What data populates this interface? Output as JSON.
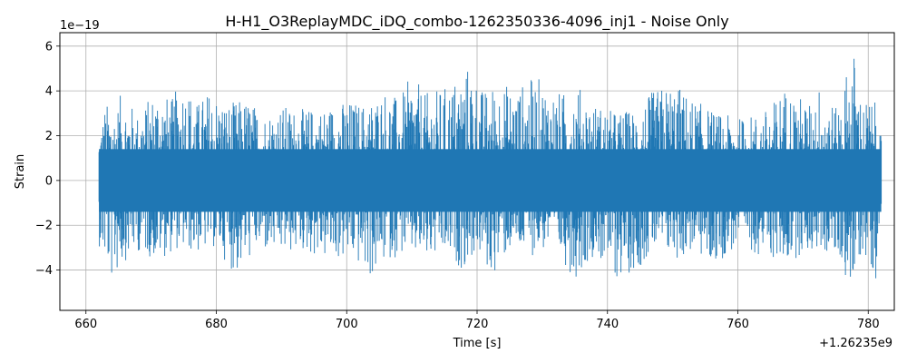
{
  "chart_data": {
    "type": "line",
    "title": "H-H1_O3ReplayMDC_iDQ_combo-1262350336-4096_inj1 - Noise Only",
    "xlabel": "Time [s]",
    "ylabel": "Strain",
    "x_offset_label": "+1.26235e9",
    "y_scale_label": "1e−19",
    "xlim": [
      656,
      784
    ],
    "ylim": [
      -5.8,
      6.6
    ],
    "x_ticks": [
      660,
      680,
      700,
      720,
      740,
      760,
      780
    ],
    "x_tick_labels": [
      "660",
      "680",
      "700",
      "720",
      "740",
      "760",
      "780"
    ],
    "y_ticks": [
      -4,
      -2,
      0,
      2,
      4,
      6
    ],
    "y_tick_labels": [
      "−4",
      "−2",
      "0",
      "2",
      "4",
      "6"
    ],
    "grid": true,
    "line_color": "#1f77b4",
    "series": [
      {
        "x_range": [
          662,
          782
        ],
        "envelope_max": [
          {
            "x": 662.0,
            "y": 2.0
          },
          {
            "x": 663.0,
            "y": 3.5
          },
          {
            "x": 664.5,
            "y": 3.2
          },
          {
            "x": 665.5,
            "y": 4.0
          },
          {
            "x": 668.0,
            "y": 3.0
          },
          {
            "x": 671.0,
            "y": 4.3
          },
          {
            "x": 673.0,
            "y": 3.6
          },
          {
            "x": 675.0,
            "y": 4.7
          },
          {
            "x": 677.0,
            "y": 3.5
          },
          {
            "x": 679.0,
            "y": 4.1
          },
          {
            "x": 682.0,
            "y": 3.5
          },
          {
            "x": 685.0,
            "y": 3.7
          },
          {
            "x": 687.0,
            "y": 3.0
          },
          {
            "x": 690.0,
            "y": 3.4
          },
          {
            "x": 693.0,
            "y": 3.2
          },
          {
            "x": 696.0,
            "y": 3.3
          },
          {
            "x": 700.0,
            "y": 3.6
          },
          {
            "x": 703.0,
            "y": 3.5
          },
          {
            "x": 706.0,
            "y": 4.2
          },
          {
            "x": 708.0,
            "y": 3.6
          },
          {
            "x": 710.0,
            "y": 4.8
          },
          {
            "x": 712.0,
            "y": 3.9
          },
          {
            "x": 715.0,
            "y": 4.2
          },
          {
            "x": 719.0,
            "y": 5.3
          },
          {
            "x": 721.0,
            "y": 4.0
          },
          {
            "x": 723.0,
            "y": 4.5
          },
          {
            "x": 726.0,
            "y": 4.2
          },
          {
            "x": 729.0,
            "y": 4.7
          },
          {
            "x": 731.0,
            "y": 4.3
          },
          {
            "x": 733.0,
            "y": 3.9
          },
          {
            "x": 735.0,
            "y": 4.4
          },
          {
            "x": 738.0,
            "y": 3.5
          },
          {
            "x": 741.0,
            "y": 3.1
          },
          {
            "x": 744.0,
            "y": 3.2
          },
          {
            "x": 747.0,
            "y": 4.0
          },
          {
            "x": 750.0,
            "y": 4.5
          },
          {
            "x": 753.0,
            "y": 3.7
          },
          {
            "x": 757.0,
            "y": 3.0
          },
          {
            "x": 760.0,
            "y": 2.8
          },
          {
            "x": 763.0,
            "y": 3.0
          },
          {
            "x": 765.0,
            "y": 3.3
          },
          {
            "x": 767.0,
            "y": 4.3
          },
          {
            "x": 771.0,
            "y": 3.5
          },
          {
            "x": 773.0,
            "y": 4.6
          },
          {
            "x": 775.0,
            "y": 3.2
          },
          {
            "x": 777.7,
            "y": 6.1
          },
          {
            "x": 779.0,
            "y": 3.6
          },
          {
            "x": 780.5,
            "y": 3.7
          },
          {
            "x": 781.5,
            "y": 3.3
          },
          {
            "x": 782.0,
            "y": 1.8
          }
        ],
        "envelope_min": [
          {
            "x": 662.0,
            "y": -2.9
          },
          {
            "x": 663.0,
            "y": -3.8
          },
          {
            "x": 664.0,
            "y": -4.6
          },
          {
            "x": 666.0,
            "y": -3.6
          },
          {
            "x": 668.0,
            "y": -3.2
          },
          {
            "x": 671.0,
            "y": -3.6
          },
          {
            "x": 674.0,
            "y": -3.1
          },
          {
            "x": 677.0,
            "y": -3.3
          },
          {
            "x": 680.0,
            "y": -3.0
          },
          {
            "x": 683.0,
            "y": -4.3
          },
          {
            "x": 686.0,
            "y": -3.2
          },
          {
            "x": 690.0,
            "y": -3.4
          },
          {
            "x": 693.0,
            "y": -3.2
          },
          {
            "x": 697.0,
            "y": -3.6
          },
          {
            "x": 701.0,
            "y": -3.6
          },
          {
            "x": 704.0,
            "y": -4.5
          },
          {
            "x": 706.0,
            "y": -3.6
          },
          {
            "x": 709.0,
            "y": -3.3
          },
          {
            "x": 712.0,
            "y": -3.7
          },
          {
            "x": 715.0,
            "y": -3.5
          },
          {
            "x": 718.0,
            "y": -4.0
          },
          {
            "x": 720.0,
            "y": -3.2
          },
          {
            "x": 722.0,
            "y": -4.4
          },
          {
            "x": 725.0,
            "y": -3.2
          },
          {
            "x": 728.0,
            "y": -3.4
          },
          {
            "x": 731.0,
            "y": -3.1
          },
          {
            "x": 733.0,
            "y": -3.6
          },
          {
            "x": 735.0,
            "y": -4.4
          },
          {
            "x": 738.0,
            "y": -3.3
          },
          {
            "x": 741.0,
            "y": -4.5
          },
          {
            "x": 744.0,
            "y": -4.1
          },
          {
            "x": 747.0,
            "y": -3.3
          },
          {
            "x": 751.0,
            "y": -3.6
          },
          {
            "x": 753.0,
            "y": -3.2
          },
          {
            "x": 756.0,
            "y": -3.9
          },
          {
            "x": 760.0,
            "y": -3.0
          },
          {
            "x": 764.0,
            "y": -3.4
          },
          {
            "x": 767.0,
            "y": -3.8
          },
          {
            "x": 770.0,
            "y": -3.3
          },
          {
            "x": 773.0,
            "y": -3.2
          },
          {
            "x": 776.0,
            "y": -3.8
          },
          {
            "x": 777.6,
            "y": -5.3
          },
          {
            "x": 779.0,
            "y": -3.2
          },
          {
            "x": 780.5,
            "y": -3.9
          },
          {
            "x": 781.3,
            "y": -4.5
          },
          {
            "x": 782.0,
            "y": -1.6
          }
        ]
      }
    ]
  }
}
